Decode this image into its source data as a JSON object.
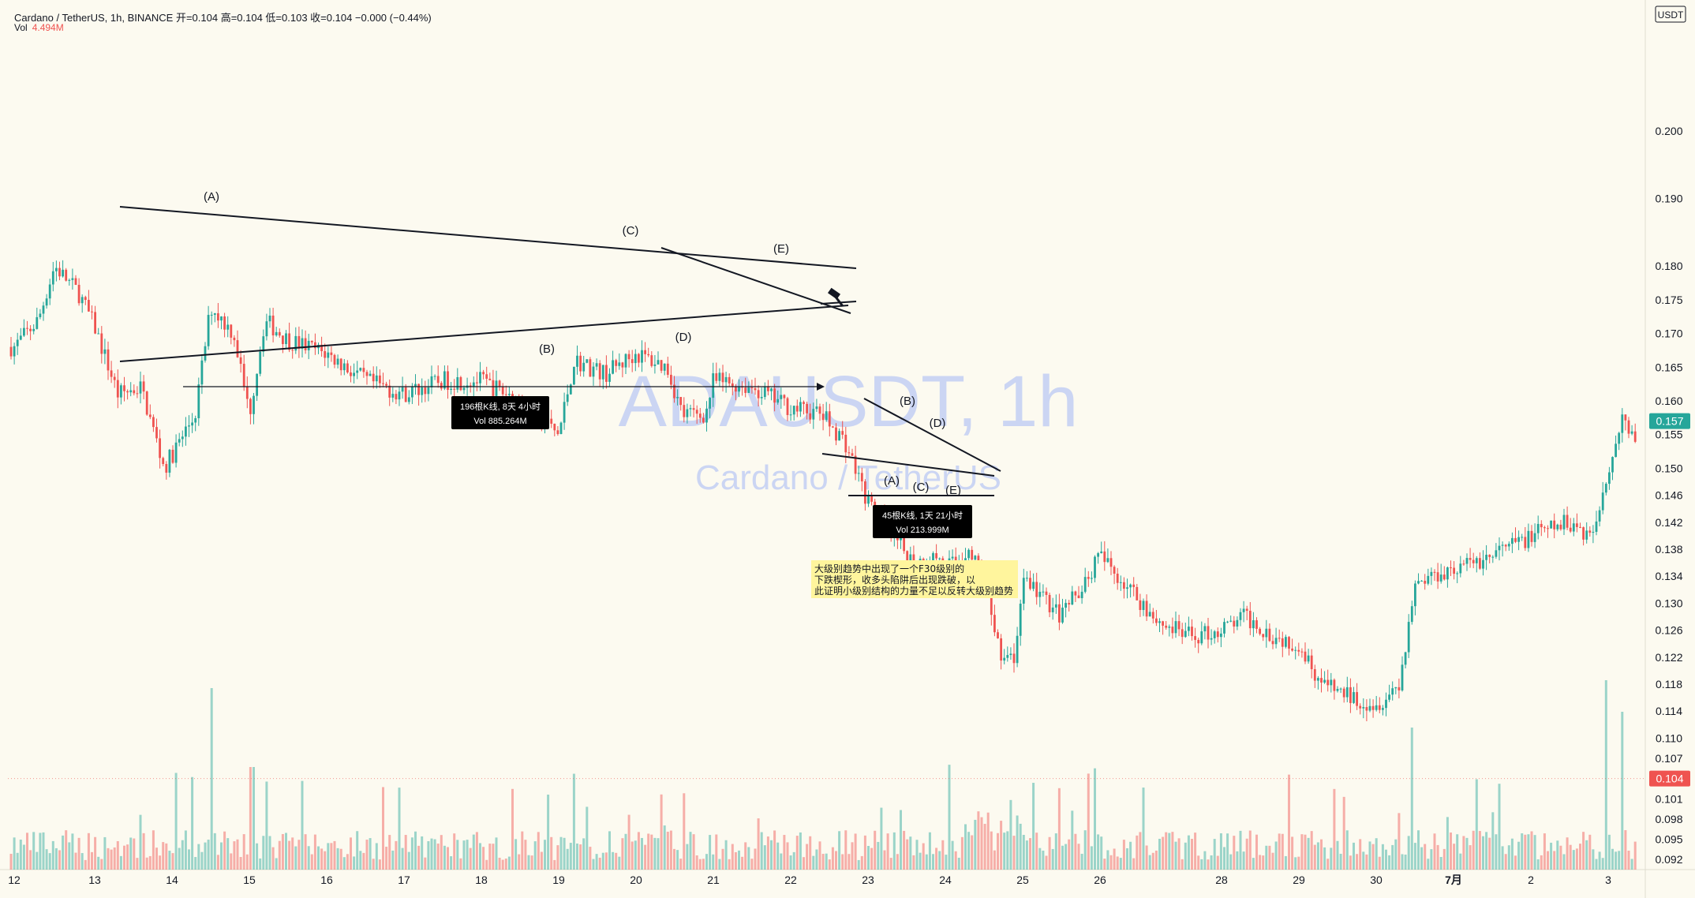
{
  "header": {
    "line1": "Cardano / TetherUS, 1h, BINANCE  开=0.104  高=0.104  低=0.103  收=0.104  −0.000 (−0.44%)",
    "vol_label": "Vol",
    "vol_value": "4.494M"
  },
  "currency": "USDT",
  "watermark": {
    "symbol": "ADAUSDT, 1h",
    "name": "Cardano / TetherUS"
  },
  "colors": {
    "up": "#26a69a",
    "down": "#ef5350",
    "background": "#fcfaf0",
    "watermark": "#1e50ff"
  },
  "chart_data": {
    "type": "candlestick",
    "symbol": "ADAUSDT",
    "interval": "1h",
    "y_axis": {
      "range": [
        0.0905,
        0.2185
      ],
      "ticks": [
        "0.200",
        "0.190",
        "0.180",
        "0.175",
        "0.170",
        "0.165",
        "0.160",
        "0.155",
        "0.150",
        "0.146",
        "0.142",
        "0.138",
        "0.134",
        "0.130",
        "0.126",
        "0.122",
        "0.118",
        "0.114",
        "0.110",
        "0.107",
        "0.104",
        "0.101",
        "0.098",
        "0.095",
        "0.092"
      ]
    },
    "x_axis": {
      "ticks": [
        "12",
        "13",
        "14",
        "15",
        "16",
        "17",
        "18",
        "19",
        "20",
        "21",
        "22",
        "23",
        "24",
        "25",
        "26",
        "28",
        "29",
        "30",
        "7月",
        "2",
        "3"
      ]
    },
    "price_path": [
      {
        "x": "12",
        "close": 0.168
      },
      {
        "x": "12.3",
        "close": 0.172
      },
      {
        "x": "12.5",
        "close": 0.18
      },
      {
        "x": "12.8",
        "close": 0.176
      },
      {
        "x": "13",
        "close": 0.171
      },
      {
        "x": "13.3",
        "close": 0.161
      },
      {
        "x": "13.6",
        "close": 0.162
      },
      {
        "x": "13.9",
        "close": 0.15
      },
      {
        "x": "14",
        "close": 0.152
      },
      {
        "x": "14.3",
        "close": 0.158
      },
      {
        "x": "14.5",
        "close": 0.174
      },
      {
        "x": "14.8",
        "close": 0.17
      },
      {
        "x": "15",
        "close": 0.158
      },
      {
        "x": "15.2",
        "close": 0.172
      },
      {
        "x": "15.5",
        "close": 0.169
      },
      {
        "x": "16",
        "close": 0.167
      },
      {
        "x": "16.5",
        "close": 0.163
      },
      {
        "x": "17",
        "close": 0.161
      },
      {
        "x": "17.5",
        "close": 0.163
      },
      {
        "x": "18",
        "close": 0.163
      },
      {
        "x": "18.5",
        "close": 0.16
      },
      {
        "x": "19",
        "close": 0.155
      },
      {
        "x": "19.2",
        "close": 0.166
      },
      {
        "x": "19.6",
        "close": 0.164
      },
      {
        "x": "20",
        "close": 0.167
      },
      {
        "x": "20.4",
        "close": 0.165
      },
      {
        "x": "20.6",
        "close": 0.158
      },
      {
        "x": "20.9",
        "close": 0.158
      },
      {
        "x": "21",
        "close": 0.163
      },
      {
        "x": "21.5",
        "close": 0.162
      },
      {
        "x": "22",
        "close": 0.159
      },
      {
        "x": "22.4",
        "close": 0.158
      },
      {
        "x": "22.7",
        "close": 0.154
      },
      {
        "x": "23",
        "close": 0.145
      },
      {
        "x": "23.3",
        "close": 0.14
      },
      {
        "x": "23.6",
        "close": 0.136
      },
      {
        "x": "23.9",
        "close": 0.137
      },
      {
        "x": "24",
        "close": 0.135
      },
      {
        "x": "24.3",
        "close": 0.138
      },
      {
        "x": "24.5",
        "close": 0.134
      },
      {
        "x": "24.7",
        "close": 0.123
      },
      {
        "x": "24.9",
        "close": 0.121
      },
      {
        "x": "25",
        "close": 0.134
      },
      {
        "x": "25.5",
        "close": 0.128
      },
      {
        "x": "26",
        "close": 0.137
      },
      {
        "x": "26.5",
        "close": 0.132
      },
      {
        "x": "27",
        "close": 0.127
      },
      {
        "x": "27.5",
        "close": 0.125
      },
      {
        "x": "28",
        "close": 0.126
      },
      {
        "x": "28.3",
        "close": 0.128
      },
      {
        "x": "28.7",
        "close": 0.125
      },
      {
        "x": "29",
        "close": 0.124
      },
      {
        "x": "29.3",
        "close": 0.118
      },
      {
        "x": "29.7",
        "close": 0.116
      },
      {
        "x": "30",
        "close": 0.115
      },
      {
        "x": "30.3",
        "close": 0.118
      },
      {
        "x": "30.5",
        "close": 0.133
      },
      {
        "x": "30.9",
        "close": 0.135
      },
      {
        "x": "7月",
        "close": 0.135
      },
      {
        "x": "1.5",
        "close": 0.137
      },
      {
        "x": "2",
        "close": 0.14
      },
      {
        "x": "2.5",
        "close": 0.142
      },
      {
        "x": "2.8",
        "close": 0.14
      },
      {
        "x": "3",
        "close": 0.15
      },
      {
        "x": "3.2",
        "close": 0.158
      },
      {
        "x": "3.4",
        "close": 0.152
      },
      {
        "x": "3.5",
        "close": 0.157
      }
    ],
    "price_labels": [
      {
        "label": "0.157",
        "value": 0.157,
        "color": "#26a69a"
      },
      {
        "label": "0.104",
        "value": 0.104,
        "color": "#ef5350"
      }
    ],
    "annotations": {
      "triangle_waves": [
        "(A)",
        "(B)",
        "(C)",
        "(D)",
        "(E)"
      ],
      "triangle_waves_small": [
        "(A)",
        "(B)",
        "(C)",
        "(D)",
        "(E)"
      ],
      "range_box_1": {
        "line1": "196根K线, 8天 4小时",
        "line2": "Vol 885.264M"
      },
      "range_box_2": {
        "line1": "45根K线, 1天 21小时",
        "line2": "Vol 213.999M"
      },
      "note": "大级别趋势中出现了一个F30级别的下跌楔形，收多头陷阱后出现跌破，以此证明小级别结构的力量不足以反转大级别趋势"
    }
  }
}
